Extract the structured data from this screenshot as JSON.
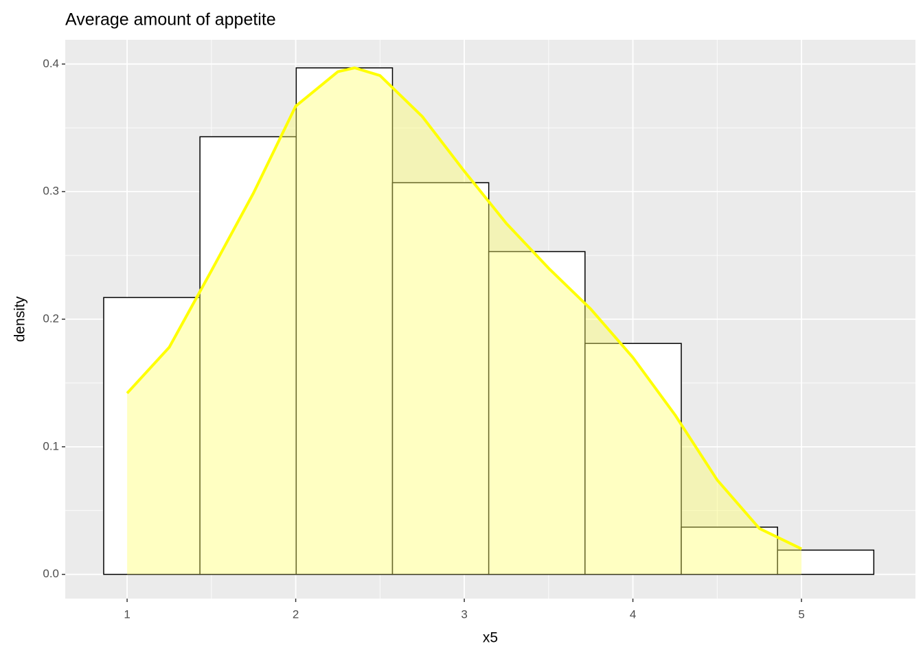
{
  "chart_data": {
    "type": "histogram",
    "title": "Average amount of appetite",
    "x_label": "x5",
    "y_label": "density",
    "bins": [
      0.861,
      1.432,
      2.003,
      2.574,
      3.145,
      3.716,
      4.287,
      4.858,
      5.429
    ],
    "values": [
      0.217,
      0.343,
      0.397,
      0.307,
      0.253,
      0.181,
      0.037,
      0.019
    ],
    "color": "#ffffff",
    "edgecolor": "#000000",
    "density": {
      "x": [
        1.0,
        1.25,
        1.5,
        1.75,
        2.0,
        2.25,
        2.35,
        2.5,
        2.75,
        3.0,
        3.25,
        3.5,
        3.75,
        4.0,
        4.25,
        4.5,
        4.75,
        5.0
      ],
      "values": [
        0.142,
        0.178,
        0.238,
        0.299,
        0.367,
        0.394,
        0.397,
        0.391,
        0.359,
        0.316,
        0.275,
        0.24,
        0.208,
        0.17,
        0.125,
        0.074,
        0.036,
        0.02
      ],
      "color": "#ffff00",
      "fill": "#ffff66"
    },
    "xlim": [
      0.633,
      5.676
    ],
    "xticks": [
      1,
      2,
      3,
      4,
      5
    ],
    "ylim": [
      -0.019,
      0.419
    ],
    "yticks": [
      {
        "value": 0,
        "label": "0.0"
      },
      0.1,
      0.2,
      0.3,
      0.4
    ],
    "grid": true
  }
}
